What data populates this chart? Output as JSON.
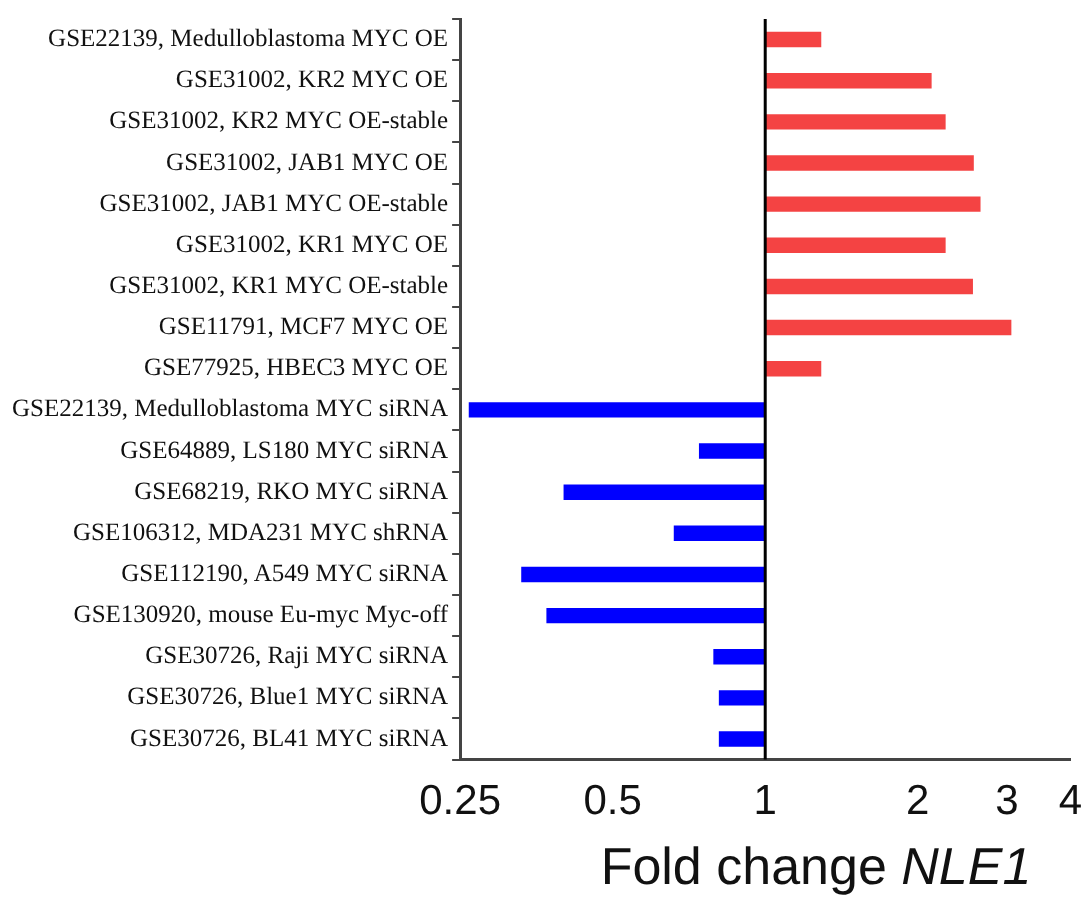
{
  "chart_data": {
    "type": "bar",
    "orientation": "horizontal",
    "xlabel": "Fold change NLE1",
    "categories": [
      "GSE22139, Medulloblastoma MYC OE",
      "GSE31002, KR2 MYC OE",
      "GSE31002, KR2 MYC OE-stable",
      "GSE31002, JAB1 MYC OE",
      "GSE31002, JAB1 MYC OE-stable",
      "GSE31002, KR1 MYC OE",
      "GSE31002, KR1 MYC OE-stable",
      "GSE11791, MCF7 MYC OE",
      "GSE77925, HBEC3 MYC OE",
      "GSE22139, Medulloblastoma MYC siRNA",
      "GSE64889, LS180 MYC siRNA",
      "GSE68219, RKO MYC siRNA",
      "GSE106312, MDA231 MYC shRNA",
      "GSE112190, A549 MYC siRNA",
      "GSE130920, mouse Eu-myc Myc-off",
      "GSE30726, Raji MYC siRNA",
      "GSE30726, Blue1 MYC siRNA",
      "GSE30726, BL41 MYC siRNA"
    ],
    "base": [
      1,
      1,
      1,
      1,
      1,
      1,
      1,
      1,
      1,
      1,
      1,
      1,
      1,
      1,
      1,
      1,
      1,
      1
    ],
    "values": [
      0.29,
      1.13,
      1.27,
      1.58,
      1.66,
      1.27,
      1.57,
      2.06,
      0.29,
      -0.74,
      -0.26,
      -0.6,
      -0.34,
      -0.67,
      -0.63,
      -0.21,
      -0.19,
      -0.19
    ],
    "colors": [
      "#f44343",
      "#f44343",
      "#f44343",
      "#f44343",
      "#f44343",
      "#f44343",
      "#f44343",
      "#f44343",
      "#f44343",
      "#0000ff",
      "#0000ff",
      "#0000ff",
      "#0000ff",
      "#0000ff",
      "#0000ff",
      "#0000ff",
      "#0000ff",
      "#0000ff"
    ],
    "xlim": [
      0.25,
      4
    ],
    "xticks": [
      0.25,
      0.5,
      1,
      2,
      3,
      4
    ],
    "ref_lines": [
      {
        "axis": "x",
        "value": 1,
        "color": "#000000"
      }
    ],
    "log": "x",
    "grid": false,
    "legend": false
  }
}
